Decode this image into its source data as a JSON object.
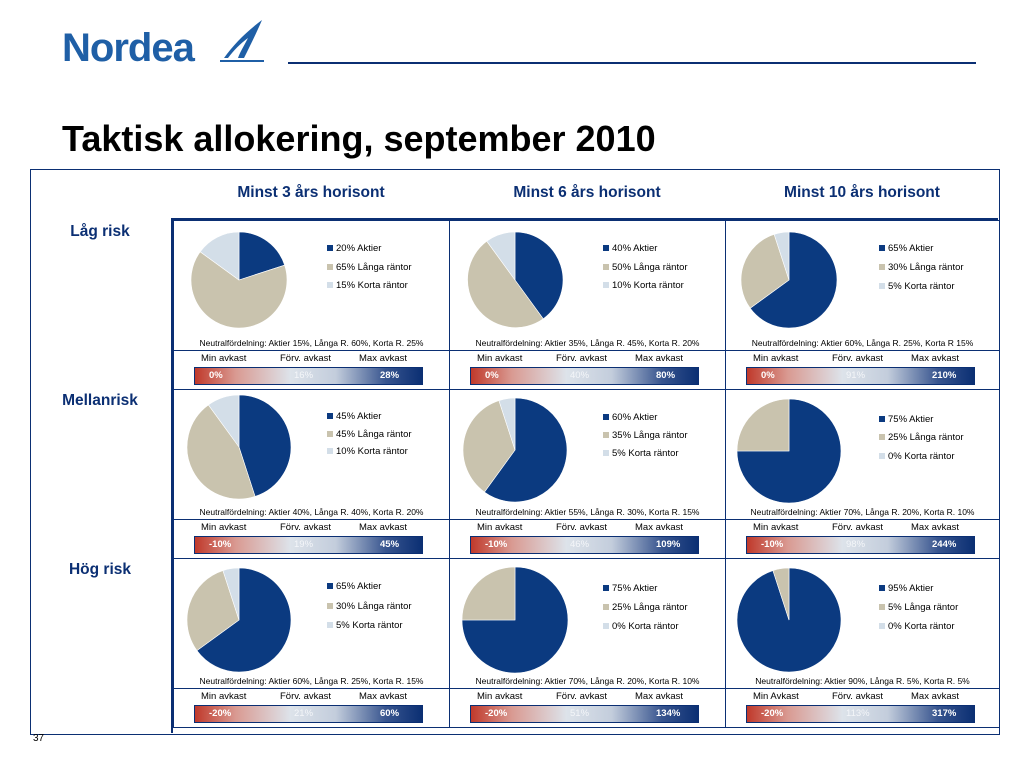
{
  "header": {
    "logo_text": "Nordea",
    "title": "Taktisk allokering, september 2010"
  },
  "colors": {
    "brand": "#0b2f73",
    "logo": "#1f5fa6",
    "aktier": "#0b3a80",
    "langa": "#c9c3ae",
    "korta": "#d3dee8",
    "min": "#c0392b"
  },
  "icons": {
    "logo": "nordea-sail-logo-icon"
  },
  "columns": [
    "Minst 3 års horisont",
    "Minst 6 års horisont",
    "Minst 10 års horisont"
  ],
  "rows": [
    "Låg risk",
    "Mellanrisk",
    "Hög risk"
  ],
  "chart_data": [
    {
      "type": "pie",
      "horizon": "Minst 3 års horisont",
      "risk": "Låg risk",
      "labels": [
        "20% Aktier",
        "65% Långa räntor",
        "15% Korta räntor"
      ],
      "values": [
        20,
        65,
        15
      ],
      "neutral": "Neutralfördelning: Aktier 15%, Långa R. 60%, Korta R. 25%",
      "stat_labels": [
        "Min avkast",
        "Förv. avkast",
        "Max avkast"
      ],
      "stats": [
        "0%",
        "16%",
        "28%"
      ]
    },
    {
      "type": "pie",
      "horizon": "Minst 6 års horisont",
      "risk": "Låg risk",
      "labels": [
        "40% Aktier",
        "50% Långa räntor",
        "10% Korta räntor"
      ],
      "values": [
        40,
        50,
        10
      ],
      "neutral": "Neutralfördelning: Aktier 35%, Långa R. 45%, Korta R. 20%",
      "stat_labels": [
        "Min avkast",
        "Förv. avkast",
        "Max avkast"
      ],
      "stats": [
        "0%",
        "40%",
        "80%"
      ]
    },
    {
      "type": "pie",
      "horizon": "Minst 10 års horisont",
      "risk": "Låg risk",
      "labels": [
        "65% Aktier",
        "30% Långa räntor",
        "5% Korta räntor"
      ],
      "values": [
        65,
        30,
        5
      ],
      "neutral": "Neutralfördelning: Aktier 60%, Långa R. 25%, Korta R 15%",
      "stat_labels": [
        "Min avkast",
        "Förv. avkast",
        "Max avkast"
      ],
      "stats": [
        "0%",
        "91%",
        "210%"
      ]
    },
    {
      "type": "pie",
      "horizon": "Minst 3 års horisont",
      "risk": "Mellanrisk",
      "labels": [
        "45% Aktier",
        "45% Långa räntor",
        "10% Korta räntor"
      ],
      "values": [
        45,
        45,
        10
      ],
      "neutral": "Neutralfördelning: Aktier 40%, Långa R. 40%, Korta R. 20%",
      "stat_labels": [
        "Min avkast",
        "Förv. avkast",
        "Max avkast"
      ],
      "stats": [
        "-10%",
        "19%",
        "45%"
      ]
    },
    {
      "type": "pie",
      "horizon": "Minst 6 års horisont",
      "risk": "Mellanrisk",
      "labels": [
        "60% Aktier",
        "35% Långa räntor",
        "5% Korta räntor"
      ],
      "values": [
        60,
        35,
        5
      ],
      "neutral": "Neutralfördelning: Aktier 55%, Långa R. 30%, Korta R. 15%",
      "stat_labels": [
        "Min avkast",
        "Förv. avkast",
        "Max avkast"
      ],
      "stats": [
        "-10%",
        "46%",
        "109%"
      ]
    },
    {
      "type": "pie",
      "horizon": "Minst 10 års horisont",
      "risk": "Mellanrisk",
      "labels": [
        "75% Aktier",
        "25% Långa räntor",
        "0% Korta räntor"
      ],
      "values": [
        75,
        25,
        0
      ],
      "neutral": "Neutralfördelning: Aktier 70%, Långa R. 20%, Korta R. 10%",
      "stat_labels": [
        "Min avkast",
        "Förv. avkast",
        "Max avkast"
      ],
      "stats": [
        "-10%",
        "98%",
        "244%"
      ]
    },
    {
      "type": "pie",
      "horizon": "Minst 3 års horisont",
      "risk": "Hög risk",
      "labels": [
        "65% Aktier",
        "30% Långa räntor",
        "5% Korta räntor"
      ],
      "values": [
        65,
        30,
        5
      ],
      "neutral": "Neutralfördelning: Aktier 60%, Långa R. 25%, Korta R. 15%",
      "stat_labels": [
        "Min avkast",
        "Förv. avkast",
        "Max avkast"
      ],
      "stats": [
        "-20%",
        "21%",
        "60%"
      ]
    },
    {
      "type": "pie",
      "horizon": "Minst 6 års horisont",
      "risk": "Hög risk",
      "labels": [
        "75% Aktier",
        "25% Långa räntor",
        "0% Korta räntor"
      ],
      "values": [
        75,
        25,
        0
      ],
      "neutral": "Neutralfördelning: Aktier 70%, Långa R. 20%, Korta R. 10%",
      "stat_labels": [
        "Min avkast",
        "Förv. avkast",
        "Max avkast"
      ],
      "stats": [
        "-20%",
        "51%",
        "134%"
      ]
    },
    {
      "type": "pie",
      "horizon": "Minst 10 års horisont",
      "risk": "Hög risk",
      "labels": [
        "95% Aktier",
        "5% Långa räntor",
        "0% Korta räntor"
      ],
      "values": [
        95,
        5,
        0
      ],
      "neutral": "Neutralfördelning: Aktier 90%, Långa R. 5%, Korta R. 5%",
      "stat_labels": [
        "Min Avkast",
        "Förv. avkast",
        "Max avkast"
      ],
      "stats": [
        "-20%",
        "113%",
        "317%"
      ]
    }
  ],
  "footer": {
    "page_number": "37"
  }
}
